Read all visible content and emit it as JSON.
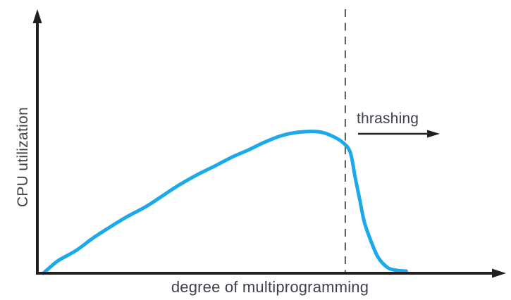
{
  "colors": {
    "curve": "#1ca9ea",
    "axis": "#231f20",
    "dashed_line": "#58595b",
    "text": "#3e4148",
    "background": "#ffffff"
  },
  "chart_data": {
    "type": "line",
    "title": "",
    "xlabel": "degree of multiprogramming",
    "ylabel": "CPU utilization",
    "xlim": [
      0,
      1
    ],
    "ylim": [
      0,
      1.05
    ],
    "grid": false,
    "x_tick_labels": [],
    "y_tick_labels": [],
    "legend": "none",
    "series": [
      {
        "name": "CPU utilization",
        "color": "#1ca9ea",
        "points": [
          [
            0.01,
            0.0
          ],
          [
            0.04,
            0.085
          ],
          [
            0.08,
            0.16
          ],
          [
            0.115,
            0.245
          ],
          [
            0.15,
            0.32
          ],
          [
            0.19,
            0.4
          ],
          [
            0.23,
            0.47
          ],
          [
            0.265,
            0.545
          ],
          [
            0.3,
            0.62
          ],
          [
            0.34,
            0.695
          ],
          [
            0.38,
            0.76
          ],
          [
            0.415,
            0.82
          ],
          [
            0.45,
            0.87
          ],
          [
            0.485,
            0.925
          ],
          [
            0.52,
            0.97
          ],
          [
            0.555,
            0.995
          ],
          [
            0.6,
            1.0
          ],
          [
            0.63,
            0.97
          ],
          [
            0.655,
            0.92
          ],
          [
            0.67,
            0.85
          ],
          [
            0.68,
            0.68
          ],
          [
            0.69,
            0.52
          ],
          [
            0.7,
            0.36
          ],
          [
            0.715,
            0.22
          ],
          [
            0.73,
            0.11
          ],
          [
            0.75,
            0.04
          ],
          [
            0.77,
            0.02
          ],
          [
            0.79,
            0.015
          ]
        ]
      }
    ],
    "annotations": [
      {
        "type": "vline",
        "style": "dashed",
        "x": 0.659
      },
      {
        "type": "label-arrow",
        "text": "thrashing",
        "direction": "right"
      }
    ]
  }
}
